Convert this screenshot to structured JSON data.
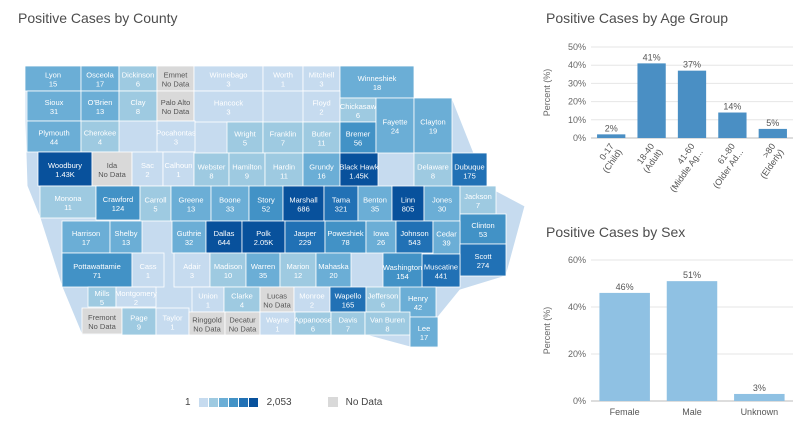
{
  "titles": {
    "map": "Positive Cases by County",
    "age": "Positive Cases by Age Group",
    "sex": "Positive Cases by Sex"
  },
  "legend": {
    "min": "1",
    "max": "2,053",
    "no_data": "No Data",
    "scale": [
      "#c6dbef",
      "#9ecae1",
      "#6baed6",
      "#4292c6",
      "#2171b5",
      "#08519c"
    ]
  },
  "no_data_color": "#d9d9d9",
  "counties": [
    {
      "name": "Lyon",
      "value": "15"
    },
    {
      "name": "Osceola",
      "value": "17"
    },
    {
      "name": "Dickinson",
      "value": "6"
    },
    {
      "name": "Emmet",
      "value": "No Data"
    },
    {
      "name": "Winnebago",
      "value": "3"
    },
    {
      "name": "Worth",
      "value": "1"
    },
    {
      "name": "Mitchell",
      "value": "3"
    },
    {
      "name": "Winneshiek",
      "value": "18"
    },
    {
      "name": "Sioux",
      "value": "31"
    },
    {
      "name": "O'Brien",
      "value": "13"
    },
    {
      "name": "Clay",
      "value": "8"
    },
    {
      "name": "Palo Alto",
      "value": "No Data"
    },
    {
      "name": "Hancock",
      "value": "3"
    },
    {
      "name": "Floyd",
      "value": "2"
    },
    {
      "name": "Chickasaw",
      "value": "6"
    },
    {
      "name": "Plymouth",
      "value": "44"
    },
    {
      "name": "Cherokee",
      "value": "4"
    },
    {
      "name": "Pocahontas",
      "value": "3"
    },
    {
      "name": "Wright",
      "value": "5"
    },
    {
      "name": "Franklin",
      "value": "7"
    },
    {
      "name": "Butler",
      "value": "11"
    },
    {
      "name": "Bremer",
      "value": "56"
    },
    {
      "name": "Fayette",
      "value": "24"
    },
    {
      "name": "Clayton",
      "value": "19"
    },
    {
      "name": "Woodbury",
      "value": "1.43K"
    },
    {
      "name": "Ida",
      "value": "No Data"
    },
    {
      "name": "Sac",
      "value": "2"
    },
    {
      "name": "Calhoun",
      "value": "1"
    },
    {
      "name": "Webster",
      "value": "8"
    },
    {
      "name": "Hamilton",
      "value": "9"
    },
    {
      "name": "Hardin",
      "value": "11"
    },
    {
      "name": "Grundy",
      "value": "16"
    },
    {
      "name": "Black Hawk",
      "value": "1.45K"
    },
    {
      "name": "Delaware",
      "value": "8"
    },
    {
      "name": "Dubuque",
      "value": "175"
    },
    {
      "name": "Monona",
      "value": "11"
    },
    {
      "name": "Crawford",
      "value": "124"
    },
    {
      "name": "Carroll",
      "value": "5"
    },
    {
      "name": "Greene",
      "value": "13"
    },
    {
      "name": "Boone",
      "value": "33"
    },
    {
      "name": "Story",
      "value": "52"
    },
    {
      "name": "Marshall",
      "value": "686"
    },
    {
      "name": "Tama",
      "value": "321"
    },
    {
      "name": "Benton",
      "value": "35"
    },
    {
      "name": "Linn",
      "value": "805"
    },
    {
      "name": "Jones",
      "value": "30"
    },
    {
      "name": "Jackson",
      "value": "7"
    },
    {
      "name": "Clinton",
      "value": "53"
    },
    {
      "name": "Harrison",
      "value": "17"
    },
    {
      "name": "Shelby",
      "value": "13"
    },
    {
      "name": "Guthrie",
      "value": "32"
    },
    {
      "name": "Dallas",
      "value": "644"
    },
    {
      "name": "Polk",
      "value": "2.05K"
    },
    {
      "name": "Jasper",
      "value": "229"
    },
    {
      "name": "Poweshiek",
      "value": "78"
    },
    {
      "name": "Iowa",
      "value": "26"
    },
    {
      "name": "Johnson",
      "value": "543"
    },
    {
      "name": "Cedar",
      "value": "39"
    },
    {
      "name": "Scott",
      "value": "274"
    },
    {
      "name": "Muscatine",
      "value": "441"
    },
    {
      "name": "Pottawattamie",
      "value": "71"
    },
    {
      "name": "Cass",
      "value": "1"
    },
    {
      "name": "Adair",
      "value": "3"
    },
    {
      "name": "Madison",
      "value": "10"
    },
    {
      "name": "Warren",
      "value": "35"
    },
    {
      "name": "Marion",
      "value": "12"
    },
    {
      "name": "Mahaska",
      "value": "20"
    },
    {
      "name": "Washington",
      "value": "154"
    },
    {
      "name": "Mills",
      "value": "5"
    },
    {
      "name": "Montgomery",
      "value": "2"
    },
    {
      "name": "Union",
      "value": "1"
    },
    {
      "name": "Clarke",
      "value": "4"
    },
    {
      "name": "Lucas",
      "value": "No Data"
    },
    {
      "name": "Monroe",
      "value": "2"
    },
    {
      "name": "Wapello",
      "value": "165"
    },
    {
      "name": "Jefferson",
      "value": "6"
    },
    {
      "name": "Henry",
      "value": "42"
    },
    {
      "name": "Fremont",
      "value": "No Data"
    },
    {
      "name": "Page",
      "value": "9"
    },
    {
      "name": "Taylor",
      "value": "1"
    },
    {
      "name": "Ringgold",
      "value": "No Data"
    },
    {
      "name": "Decatur",
      "value": "No Data"
    },
    {
      "name": "Wayne",
      "value": "1"
    },
    {
      "name": "Appanoose",
      "value": "6"
    },
    {
      "name": "Davis",
      "value": "7"
    },
    {
      "name": "Van Buren",
      "value": "8"
    },
    {
      "name": "Lee",
      "value": "17"
    }
  ],
  "chart_data": [
    {
      "type": "bar",
      "title": "Positive Cases by Age Group",
      "ylabel": "Percent (%)",
      "categories": [
        "0-17 (Child)",
        "18-40 (Adult)",
        "41-60 (Middle Ag...",
        "61-80 (Older Ad...",
        ">80 (Elderly)"
      ],
      "values": [
        2,
        41,
        37,
        14,
        5
      ],
      "value_labels": [
        "2%",
        "41%",
        "37%",
        "14%",
        "5%"
      ],
      "yticks": [
        "0%",
        "10%",
        "20%",
        "30%",
        "40%",
        "50%"
      ],
      "ylim": [
        0,
        50
      ],
      "color": "#4a8fc4"
    },
    {
      "type": "bar",
      "title": "Positive Cases by Sex",
      "ylabel": "Percent (%)",
      "categories": [
        "Female",
        "Male",
        "Unknown"
      ],
      "values": [
        46,
        51,
        3
      ],
      "value_labels": [
        "46%",
        "51%",
        "3%"
      ],
      "yticks": [
        "0%",
        "20%",
        "40%",
        "60%"
      ],
      "ylim": [
        0,
        60
      ],
      "color": "#8fc1e3"
    }
  ]
}
